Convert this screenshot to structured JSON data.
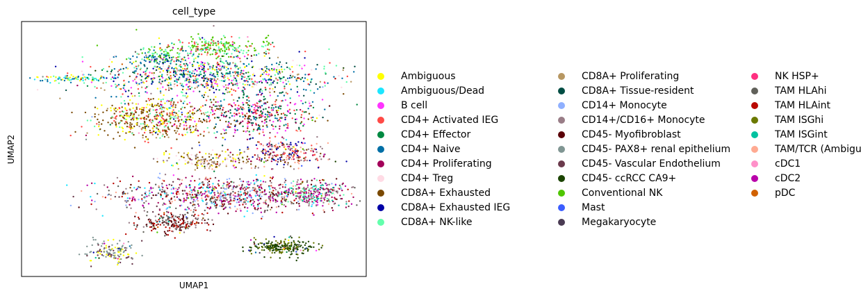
{
  "chart_data": {
    "type": "scatter",
    "title": "cell_type",
    "xlabel": "UMAP1",
    "ylabel": "UMAP2",
    "grid": false,
    "ticks": false,
    "legend_position": "right",
    "legend_columns": 3,
    "categories": [
      {
        "name": "Ambiguous",
        "color": "#ffff00"
      },
      {
        "name": "Ambiguous/Dead",
        "color": "#1ce6ff"
      },
      {
        "name": "B cell",
        "color": "#ff34ff"
      },
      {
        "name": "CD4+ Activated IEG",
        "color": "#ff4a46"
      },
      {
        "name": "CD4+ Effector",
        "color": "#008941"
      },
      {
        "name": "CD4+ Naive",
        "color": "#006fa6"
      },
      {
        "name": "CD4+ Proliferating",
        "color": "#a30059"
      },
      {
        "name": "CD4+ Treg",
        "color": "#ffdbe5"
      },
      {
        "name": "CD8A+ Exhausted",
        "color": "#7a4900"
      },
      {
        "name": "CD8A+ Exhausted IEG",
        "color": "#0000a6"
      },
      {
        "name": "CD8A+ NK-like",
        "color": "#63ffac"
      },
      {
        "name": "CD8A+ Proliferating",
        "color": "#b79762"
      },
      {
        "name": "CD8A+ Tissue-resident",
        "color": "#004d43"
      },
      {
        "name": "CD14+ Monocyte",
        "color": "#8fb0ff"
      },
      {
        "name": "CD14+/CD16+ Monocyte",
        "color": "#997d87"
      },
      {
        "name": "CD45- Myofibroblast",
        "color": "#5a0007"
      },
      {
        "name": "CD45- PAX8+ renal epithelium",
        "color": "#809693"
      },
      {
        "name": "CD45- Vascular Endothelium",
        "color": "#6a3a4c"
      },
      {
        "name": "CD45- ccRCC CA9+",
        "color": "#1b4400"
      },
      {
        "name": "Conventional NK",
        "color": "#4fc601"
      },
      {
        "name": "Mast",
        "color": "#3b5dff"
      },
      {
        "name": "Megakaryocyte",
        "color": "#4a3b53"
      },
      {
        "name": "NK HSP+",
        "color": "#ff2f80"
      },
      {
        "name": "TAM HLAhi",
        "color": "#61615a"
      },
      {
        "name": "TAM HLAint",
        "color": "#ba0900"
      },
      {
        "name": "TAM ISGhi",
        "color": "#6b7900"
      },
      {
        "name": "TAM ISGint",
        "color": "#00c2a0"
      },
      {
        "name": "TAM/TCR (Ambiguos)",
        "color": "#ffaa92"
      },
      {
        "name": "cDC1",
        "color": "#ff90c9"
      },
      {
        "name": "cDC2",
        "color": "#b903aa"
      },
      {
        "name": "pDC",
        "color": "#d16100"
      }
    ]
  }
}
